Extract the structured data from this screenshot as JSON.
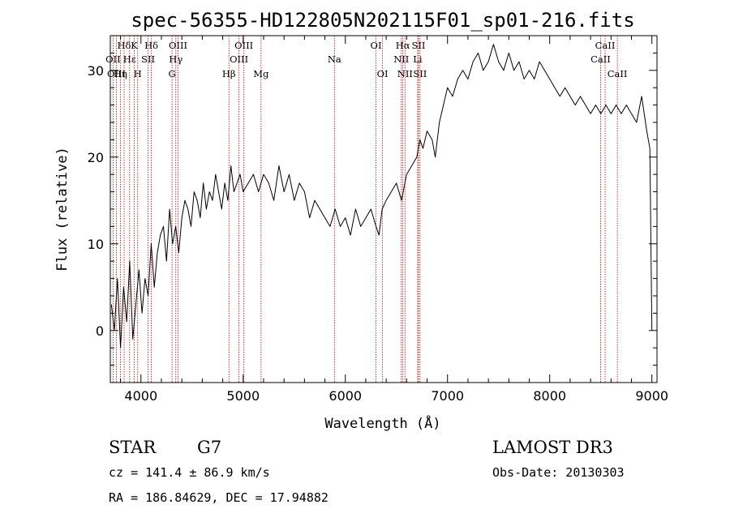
{
  "chart_data": {
    "type": "line",
    "title": "spec-56355-HD122805N202115F01_sp01-216.fits",
    "xlabel": "Wavelength (Å)",
    "ylabel": "Flux (relative)",
    "xlim": [
      3700,
      9050
    ],
    "ylim": [
      -6,
      34
    ],
    "xticks": [
      4000,
      5000,
      6000,
      7000,
      8000,
      9000
    ],
    "yticks": [
      0,
      10,
      20,
      30
    ],
    "grid": false,
    "series": [
      {
        "x": [
          3710,
          3740,
          3770,
          3800,
          3830,
          3860,
          3890,
          3920,
          3950,
          3980,
          4010,
          4040,
          4070,
          4100,
          4130,
          4160,
          4190,
          4220,
          4250,
          4280,
          4310,
          4340,
          4370,
          4400,
          4430,
          4460,
          4490,
          4520,
          4550,
          4580,
          4610,
          4640,
          4670,
          4700,
          4730,
          4760,
          4790,
          4820,
          4850,
          4880,
          4910,
          4940,
          4970,
          5000,
          5050,
          5100,
          5150,
          5200,
          5250,
          5300,
          5350,
          5400,
          5450,
          5500,
          5550,
          5600,
          5650,
          5700,
          5750,
          5800,
          5850,
          5900,
          5950,
          6000,
          6050,
          6100,
          6150,
          6200,
          6250,
          6300,
          6330,
          6360,
          6400,
          6450,
          6500,
          6550,
          6600,
          6650,
          6700,
          6730,
          6760,
          6800,
          6850,
          6880,
          6920,
          6960,
          7000,
          7050,
          7100,
          7150,
          7200,
          7250,
          7300,
          7350,
          7400,
          7450,
          7500,
          7550,
          7600,
          7650,
          7700,
          7750,
          7800,
          7850,
          7900,
          7950,
          8000,
          8050,
          8100,
          8150,
          8200,
          8250,
          8300,
          8350,
          8400,
          8450,
          8500,
          8550,
          8600,
          8650,
          8700,
          8750,
          8800,
          8850,
          8900,
          8950,
          8980,
          9000
        ],
        "y": [
          3,
          0,
          6,
          -2,
          5,
          1,
          8,
          -1,
          3,
          7,
          2,
          6,
          4,
          10,
          5,
          9,
          11,
          12,
          8,
          14,
          10,
          12,
          9,
          13,
          15,
          14,
          12,
          16,
          15,
          13,
          17,
          14,
          16,
          15,
          18,
          16,
          14,
          17,
          15,
          19,
          16,
          17,
          18,
          16,
          17,
          18,
          16,
          18,
          17,
          15,
          19,
          16,
          18,
          15,
          17,
          16,
          13,
          15,
          14,
          13,
          12,
          14,
          12,
          13,
          11,
          14,
          12,
          13,
          14,
          12,
          11,
          14,
          15,
          16,
          17,
          15,
          18,
          19,
          20,
          22,
          21,
          23,
          22,
          20,
          24,
          26,
          28,
          27,
          29,
          30,
          29,
          31,
          32,
          30,
          31,
          33,
          31,
          30,
          32,
          30,
          31,
          29,
          30,
          29,
          31,
          30,
          29,
          28,
          27,
          28,
          27,
          26,
          27,
          26,
          25,
          26,
          25,
          26,
          25,
          26,
          25,
          26,
          25,
          24,
          27,
          23,
          21,
          0
        ]
      }
    ],
    "lines": [
      {
        "name": "Hδ",
        "x": 3835,
        "row": 0
      },
      {
        "name": "OII",
        "x": 3727,
        "row": 1
      },
      {
        "name": "OIII",
        "x": 3760,
        "row": 2
      },
      {
        "name": "Hε",
        "x": 3889,
        "row": 1
      },
      {
        "name": "Hη",
        "x": 3798,
        "row": 2
      },
      {
        "name": "K",
        "x": 3934,
        "row": 0
      },
      {
        "name": "H",
        "x": 3968,
        "row": 2
      },
      {
        "name": "SII",
        "x": 4070,
        "row": 1
      },
      {
        "name": "Hδ",
        "x": 4102,
        "row": 0
      },
      {
        "name": "OIII",
        "x": 4363,
        "row": 0
      },
      {
        "name": "Hγ",
        "x": 4341,
        "row": 1
      },
      {
        "name": "G",
        "x": 4304,
        "row": 2
      },
      {
        "name": "OIII",
        "x": 5007,
        "row": 0
      },
      {
        "name": "OIII",
        "x": 4959,
        "row": 1
      },
      {
        "name": "Hβ",
        "x": 4861,
        "row": 2
      },
      {
        "name": "Mg",
        "x": 5175,
        "row": 2
      },
      {
        "name": "Na",
        "x": 5893,
        "row": 1
      },
      {
        "name": "OI",
        "x": 6300,
        "row": 0
      },
      {
        "name": "OI",
        "x": 6364,
        "row": 2
      },
      {
        "name": "Hα",
        "x": 6563,
        "row": 0
      },
      {
        "name": "SII",
        "x": 6716,
        "row": 0
      },
      {
        "name": "NII",
        "x": 6548,
        "row": 1
      },
      {
        "name": "Li",
        "x": 6708,
        "row": 1
      },
      {
        "name": "NII",
        "x": 6584,
        "row": 2
      },
      {
        "name": "SII",
        "x": 6731,
        "row": 2
      },
      {
        "name": "CaII",
        "x": 8542,
        "row": 0
      },
      {
        "name": "CaII",
        "x": 8498,
        "row": 1
      },
      {
        "name": "CaII",
        "x": 8662,
        "row": 2
      }
    ]
  },
  "info": {
    "class_label": "STAR",
    "subclass": "G7",
    "survey": "LAMOST DR3",
    "cz": "cz = 141.4 ± 86.9 km/s",
    "obs_date": "Obs-Date: 20130303",
    "coords": "RA = 186.84629, DEC =  17.94882"
  },
  "colors": {
    "spectrum": "#000000",
    "line_marker": "#cc0000"
  }
}
